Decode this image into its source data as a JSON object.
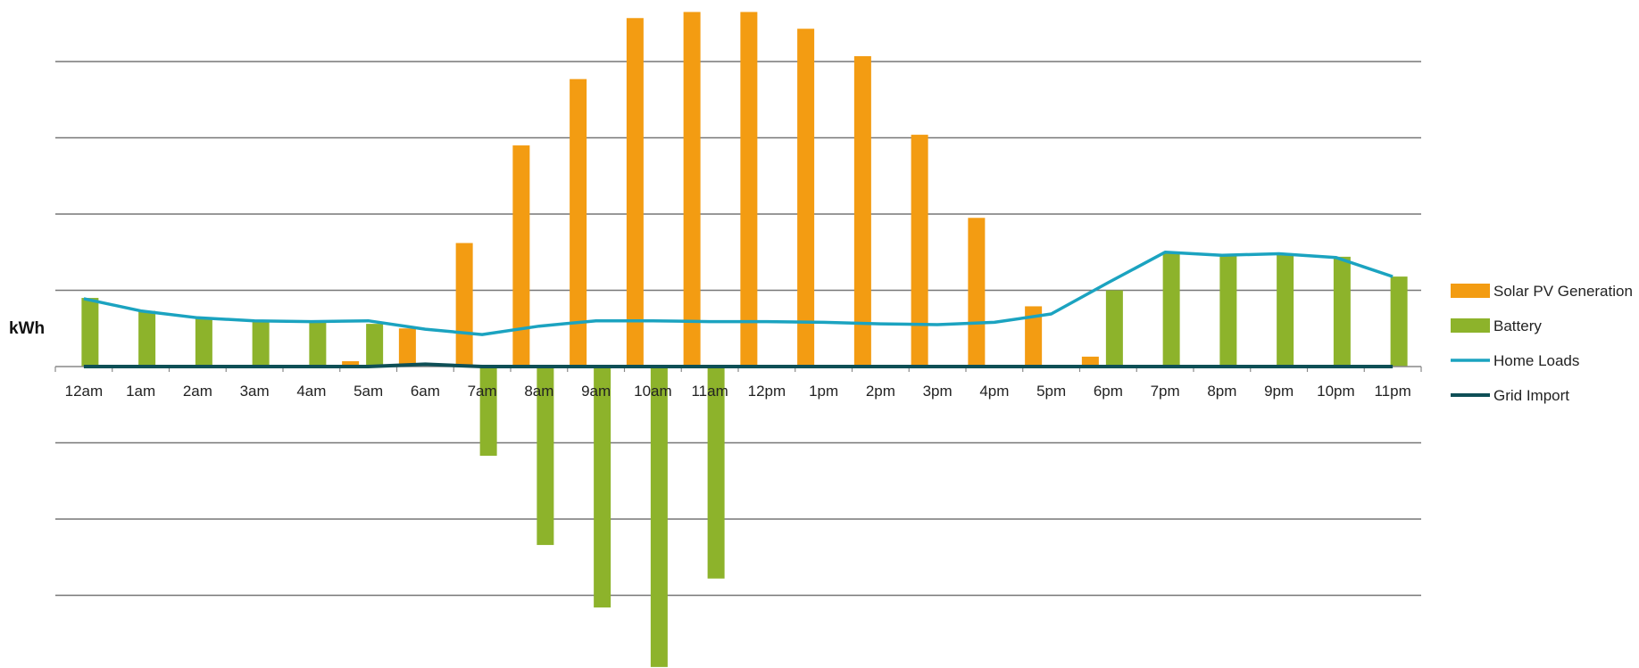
{
  "chart_data": {
    "type": "bar",
    "title": "",
    "xlabel": "",
    "ylabel": "kWh",
    "categories": [
      "12am",
      "1am",
      "2am",
      "3am",
      "4am",
      "5am",
      "6am",
      "7am",
      "8am",
      "9am",
      "10am",
      "11am",
      "12pm",
      "1pm",
      "2pm",
      "3pm",
      "4pm",
      "5pm",
      "6pm",
      "7pm",
      "8pm",
      "9pm",
      "10pm",
      "11pm"
    ],
    "ylim": [
      -4,
      4.8
    ],
    "grid": true,
    "legend_position": "right",
    "series": [
      {
        "name": "Solar PV Generation",
        "kind": "bar",
        "color": "#F39C12",
        "values": [
          0,
          0,
          0,
          0,
          0,
          0.07,
          0.5,
          1.62,
          2.9,
          3.77,
          4.57,
          4.65,
          4.65,
          4.43,
          4.07,
          3.04,
          1.95,
          0.79,
          0.13,
          0.02,
          0,
          0,
          0,
          0
        ]
      },
      {
        "name": "Battery",
        "kind": "bar",
        "color": "#8DB32B",
        "values": [
          0.9,
          0.73,
          0.63,
          0.59,
          0.58,
          0.56,
          0,
          -1.17,
          -2.34,
          -3.16,
          -3.94,
          -2.78,
          0,
          0,
          0,
          0,
          0,
          0,
          1,
          1.5,
          1.47,
          1.47,
          1.44,
          1.18
        ]
      },
      {
        "name": "Home Loads",
        "kind": "line",
        "color": "#1BA3C0",
        "values": [
          0.89,
          0.73,
          0.64,
          0.6,
          0.59,
          0.6,
          0.49,
          0.42,
          0.53,
          0.6,
          0.6,
          0.59,
          0.59,
          0.58,
          0.56,
          0.55,
          0.58,
          0.69,
          1.1,
          1.5,
          1.46,
          1.48,
          1.43,
          1.18
        ]
      },
      {
        "name": "Grid Import",
        "kind": "line",
        "color": "#0E4F56",
        "values": [
          0,
          0,
          0,
          0,
          0,
          0,
          0.03,
          0,
          0,
          0,
          0,
          0,
          0,
          0,
          0,
          0,
          0,
          0,
          0,
          0,
          0,
          0,
          0,
          0
        ]
      }
    ]
  }
}
